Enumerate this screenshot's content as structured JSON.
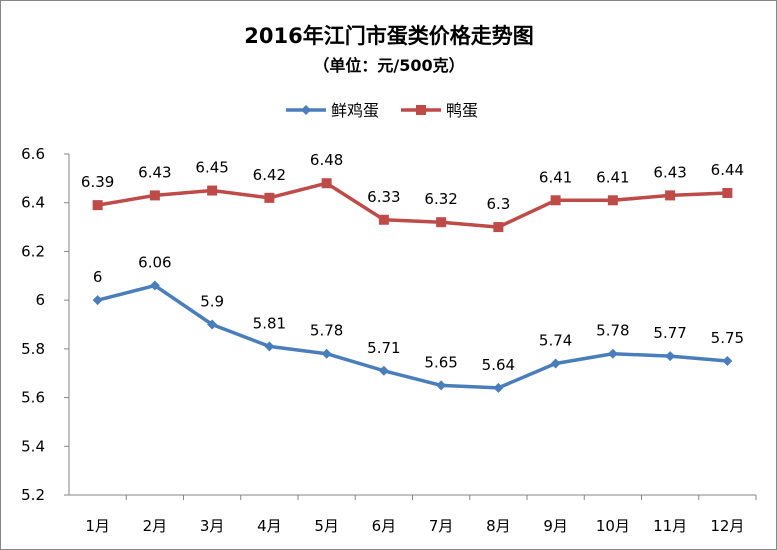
{
  "chart_data": {
    "type": "line",
    "title": "2016年江门市蛋类价格走势图",
    "subtitle": "（单位：元/500克）",
    "categories": [
      "1月",
      "2月",
      "3月",
      "4月",
      "5月",
      "6月",
      "7月",
      "8月",
      "9月",
      "10月",
      "11月",
      "12月"
    ],
    "series": [
      {
        "name": "鲜鸡蛋",
        "color": "#4A7EBB",
        "marker": "diamond",
        "values": [
          6,
          6.06,
          5.9,
          5.81,
          5.78,
          5.71,
          5.65,
          5.64,
          5.74,
          5.78,
          5.77,
          5.75
        ],
        "labels": [
          "6",
          "6.06",
          "5.9",
          "5.81",
          "5.78",
          "5.71",
          "5.65",
          "5.64",
          "5.74",
          "5.78",
          "5.77",
          "5.75"
        ]
      },
      {
        "name": "鸭蛋",
        "color": "#BE4B48",
        "marker": "square",
        "values": [
          6.39,
          6.43,
          6.45,
          6.42,
          6.48,
          6.33,
          6.32,
          6.3,
          6.41,
          6.41,
          6.43,
          6.44
        ],
        "labels": [
          "6.39",
          "6.43",
          "6.45",
          "6.42",
          "6.48",
          "6.33",
          "6.32",
          "6.3",
          "6.41",
          "6.41",
          "6.43",
          "6.44"
        ]
      }
    ],
    "ylim": [
      5.2,
      6.6
    ],
    "yticks": [
      "5.2",
      "5.4",
      "5.6",
      "5.8",
      "6",
      "6.2",
      "6.4",
      "6.6"
    ],
    "grid": false,
    "legend": "top"
  }
}
